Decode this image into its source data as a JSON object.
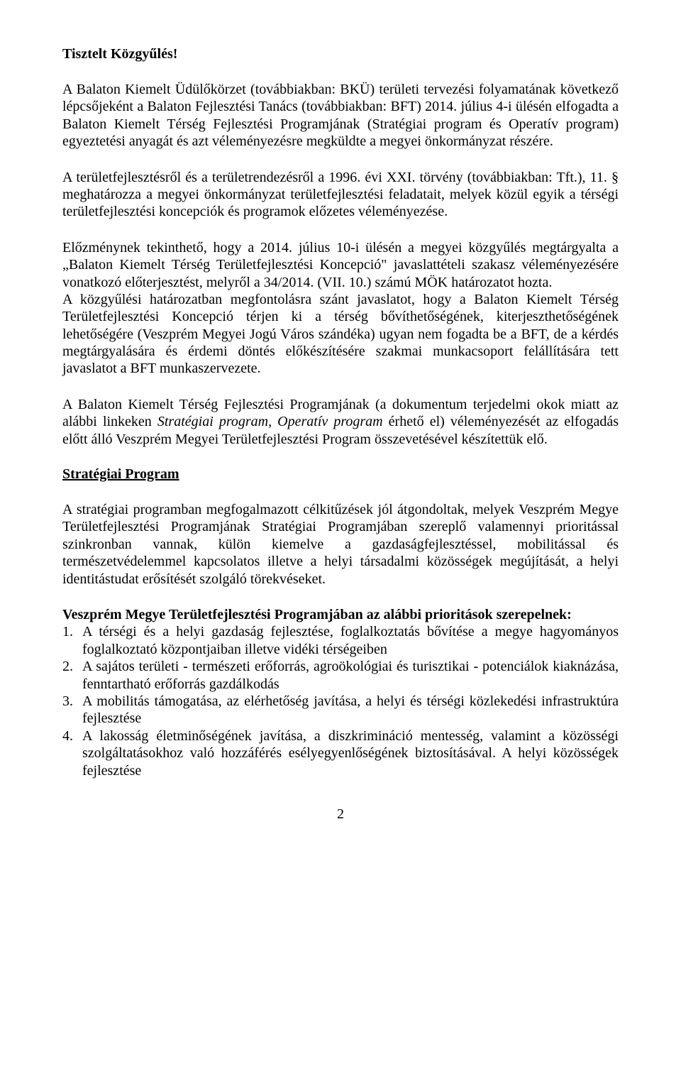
{
  "heading": "Tisztelt Közgyűlés!",
  "p1": "A Balaton Kiemelt Üdülőkörzet (továbbiakban: BKÜ) területi tervezési folyamatának következő lépcsőjeként a Balaton Fejlesztési Tanács (továbbiakban: BFT) 2014. július 4-i ülésén elfogadta a Balaton Kiemelt Térség Fejlesztési Programjának (Stratégiai program és Operatív program) egyeztetési anyagát és azt véleményezésre megküldte a megyei önkormányzat részére.",
  "p2": "A területfejlesztésről és a területrendezésről a 1996. évi XXI. törvény (továbbiakban: Tft.), 11. § meghatározza a megyei önkormányzat területfejlesztési feladatait, melyek közül egyik a térségi területfejlesztési koncepciók és programok előzetes véleményezése.",
  "p3_a": "Előzménynek tekinthető, hogy a 2014. július 10-i ülésén a megyei közgyűlés megtárgyalta a „Balaton Kiemelt Térség Területfejlesztési Koncepció\" javaslattételi szakasz véleményezésére vonatkozó előterjesztést, melyről a 34/2014. (VII. 10.) számú MÖK határozatot hozta.",
  "p3_b": "A közgyűlési határozatban megfontolásra szánt javaslatot, hogy a Balaton Kiemelt Térség Területfejlesztési Koncepció térjen ki a térség bővíthetőségének, kiterjeszthetőségének lehetőségére (Veszprém Megyei Jogú Város szándéka) ugyan nem fogadta be a BFT, de a kérdés megtárgyalására és érdemi döntés előkészítésére szakmai munkacsoport felállítására tett javaslatot a BFT munkaszervezete.",
  "p4_prefix": "A Balaton Kiemelt Térség Fejlesztési Programjának (a dokumentum terjedelmi okok miatt az alábbi linkeken ",
  "p4_link1": "Stratégiai program, Operatív program",
  "p4_suffix": " érhető el) véleményezését az elfogadás előtt álló Veszprém Megyei Területfejlesztési Program összevetésével készítettük elő.",
  "section_heading": "Stratégiai Program",
  "p5": "A stratégiai programban megfogalmazott célkitűzések jól átgondoltak, melyek Veszprém Megye Területfejlesztési Programjának Stratégiai Programjában szereplő valamennyi prioritással szinkronban vannak, külön kiemelve a gazdaságfejlesztéssel, mobilitással és természetvédelemmel kapcsolatos illetve a helyi társadalmi közösségek megújítását, a helyi identitástudat erősítését szolgáló törekvéseket.",
  "list_heading": "Veszprém Megye Területfejlesztési Programjában az alábbi prioritások szerepelnek:",
  "items": [
    {
      "n": "1.",
      "t": "A térségi és a helyi gazdaság fejlesztése, foglalkoztatás bővítése a megye hagyományos foglalkoztató központjaiban illetve vidéki térségeiben"
    },
    {
      "n": "2.",
      "t": "A sajátos területi - természeti erőforrás, agroökológiai és turisztikai - potenciálok kiaknázása, fenntartható erőforrás gazdálkodás"
    },
    {
      "n": "3.",
      "t": "A mobilitás támogatása, az elérhetőség javítása, a helyi és térségi közlekedési infrastruktúra fejlesztése"
    },
    {
      "n": "4.",
      "t": "A lakosság életminőségének javítása, a diszkrimináció mentesség, valamint a közösségi szolgáltatásokhoz való hozzáférés esélyegyenlőségének biztosításával. A helyi közösségek fejlesztése"
    }
  ],
  "page_number": "2"
}
